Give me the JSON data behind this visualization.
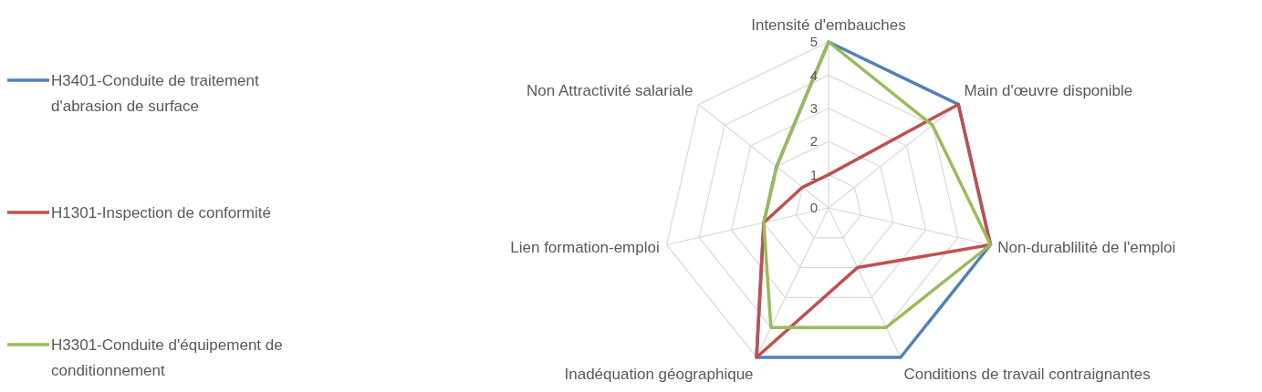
{
  "chart_data": {
    "type": "radar",
    "categories": [
      "Intensité d'embauches",
      "Main d'œuvre disponible",
      "Non-durablilité de l'emploi",
      "Conditions de travail contraignantes",
      "Inadéquation géographique",
      "Lien formation-emploi",
      "Non Attractivité salariale"
    ],
    "series": [
      {
        "name": "H3401-Conduite de traitement d'abrasion de surface",
        "color": "#4f81bd",
        "values": [
          5,
          5,
          5,
          5,
          5,
          2,
          2
        ]
      },
      {
        "name": "H1301-Inspection de conformité",
        "color": "#c0504d",
        "values": [
          1,
          5,
          5,
          2,
          5,
          2,
          1
        ]
      },
      {
        "name": "H3301-Conduite d'équipement de conditionnement",
        "color": "#9bbb59",
        "values": [
          5,
          4,
          5,
          4,
          4,
          2,
          2
        ]
      }
    ],
    "ylim": [
      0,
      5
    ],
    "yticks": [
      0,
      1,
      2,
      3,
      4,
      5
    ],
    "grid": true,
    "legend": "left",
    "marker": "none"
  }
}
